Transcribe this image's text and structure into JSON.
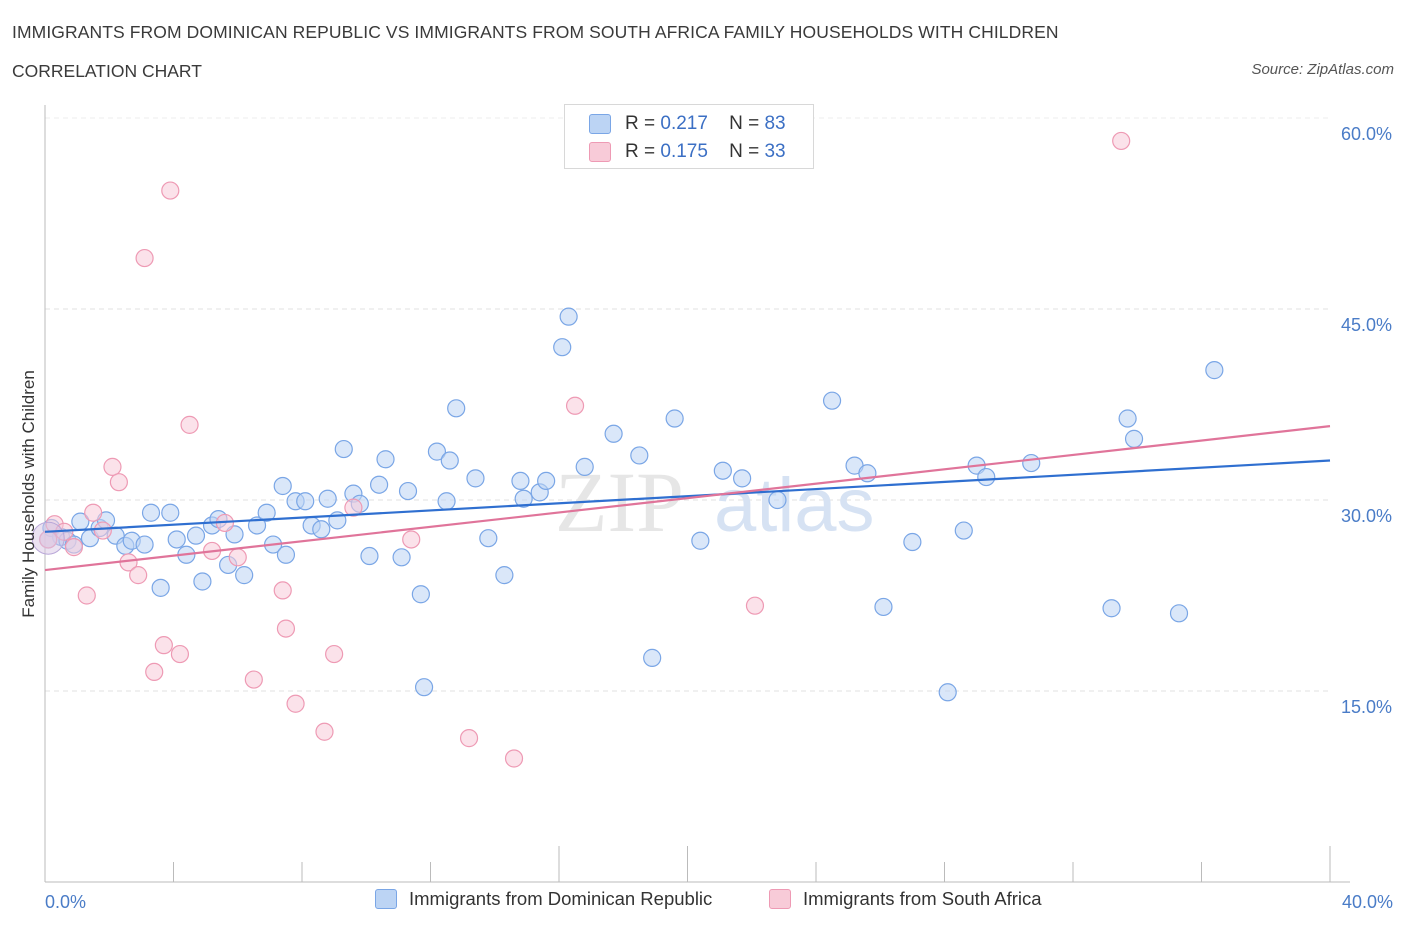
{
  "title": "IMMIGRANTS FROM DOMINICAN REPUBLIC VS IMMIGRANTS FROM SOUTH AFRICA FAMILY HOUSEHOLDS WITH CHILDREN",
  "subtitle": "CORRELATION CHART",
  "source": "Source: ZipAtlas.com",
  "watermark": {
    "zip": "ZIP",
    "atlas": "atlas"
  },
  "legend_top": [
    {
      "r_label": "R =",
      "r_value": "0.217",
      "n_label": "N =",
      "n_value": "83",
      "color": "#a9c8f0"
    },
    {
      "r_label": "R =",
      "r_value": "0.175",
      "n_label": "N =",
      "n_value": "33",
      "color": "#f5b8cb"
    }
  ],
  "chart_data": {
    "type": "scatter",
    "title": "IMMIGRANTS FROM DOMINICAN REPUBLIC VS IMMIGRANTS FROM SOUTH AFRICA FAMILY HOUSEHOLDS WITH CHILDREN",
    "ylabel": "Family Households with Children",
    "xlabel": "",
    "xlim": [
      0,
      40
    ],
    "ylim": [
      0,
      60
    ],
    "y_ticks": [
      {
        "value": 15,
        "label": "15.0%"
      },
      {
        "value": 30,
        "label": "30.0%"
      },
      {
        "value": 45,
        "label": "45.0%"
      },
      {
        "value": 60,
        "label": "60.0%"
      }
    ],
    "x_tick_labels": {
      "left": "0.0%",
      "right": "40.0%"
    },
    "x_minor_ticks": [
      0,
      4,
      8,
      12,
      16,
      20,
      24,
      28,
      32,
      36,
      40
    ],
    "series": [
      {
        "name": "Immigrants from Dominican Republic",
        "color": "#7aa6e6",
        "fill": "#bcd4f4",
        "line_color": "#2f6fd0",
        "trend": {
          "x0": 0,
          "y0": 27.5,
          "x1": 40,
          "y1": 33.1
        },
        "points": [
          [
            0.2,
            27.8
          ],
          [
            0.5,
            27.1
          ],
          [
            0.7,
            26.8
          ],
          [
            0.9,
            26.5
          ],
          [
            1.1,
            28.3
          ],
          [
            1.4,
            27.0
          ],
          [
            1.7,
            27.8
          ],
          [
            1.9,
            28.4
          ],
          [
            2.2,
            27.2
          ],
          [
            2.5,
            26.4
          ],
          [
            2.7,
            26.8
          ],
          [
            3.1,
            26.5
          ],
          [
            3.3,
            29.0
          ],
          [
            3.6,
            23.1
          ],
          [
            3.9,
            29.0
          ],
          [
            4.1,
            26.9
          ],
          [
            4.4,
            25.7
          ],
          [
            4.7,
            27.2
          ],
          [
            4.9,
            23.6
          ],
          [
            5.2,
            28.0
          ],
          [
            5.4,
            28.5
          ],
          [
            5.7,
            24.9
          ],
          [
            5.9,
            27.3
          ],
          [
            6.2,
            24.1
          ],
          [
            6.6,
            28.0
          ],
          [
            6.9,
            29.0
          ],
          [
            7.1,
            26.5
          ],
          [
            7.4,
            31.1
          ],
          [
            7.5,
            25.7
          ],
          [
            7.8,
            29.9
          ],
          [
            8.1,
            29.9
          ],
          [
            8.3,
            28.0
          ],
          [
            8.6,
            27.7
          ],
          [
            8.8,
            30.1
          ],
          [
            9.1,
            28.4
          ],
          [
            9.3,
            34.0
          ],
          [
            9.6,
            30.5
          ],
          [
            9.8,
            29.7
          ],
          [
            10.1,
            25.6
          ],
          [
            10.4,
            31.2
          ],
          [
            10.6,
            33.2
          ],
          [
            11.1,
            25.5
          ],
          [
            11.3,
            30.7
          ],
          [
            11.7,
            22.6
          ],
          [
            11.8,
            15.3
          ],
          [
            12.2,
            33.8
          ],
          [
            12.5,
            29.9
          ],
          [
            12.6,
            33.1
          ],
          [
            12.8,
            37.2
          ],
          [
            13.4,
            31.7
          ],
          [
            13.8,
            27.0
          ],
          [
            14.3,
            24.1
          ],
          [
            14.8,
            31.5
          ],
          [
            14.9,
            30.1
          ],
          [
            15.4,
            30.6
          ],
          [
            15.6,
            31.5
          ],
          [
            16.1,
            42.0
          ],
          [
            16.3,
            44.4
          ],
          [
            16.8,
            32.6
          ],
          [
            17.7,
            35.2
          ],
          [
            18.5,
            33.5
          ],
          [
            18.9,
            17.6
          ],
          [
            19.6,
            36.4
          ],
          [
            20.4,
            26.8
          ],
          [
            21.1,
            32.3
          ],
          [
            21.7,
            31.7
          ],
          [
            22.8,
            30.0
          ],
          [
            24.5,
            37.8
          ],
          [
            25.2,
            32.7
          ],
          [
            25.6,
            32.1
          ],
          [
            26.1,
            21.6
          ],
          [
            27.0,
            26.7
          ],
          [
            28.1,
            14.9
          ],
          [
            28.6,
            27.6
          ],
          [
            29.0,
            32.7
          ],
          [
            29.3,
            31.8
          ],
          [
            30.7,
            32.9
          ],
          [
            33.2,
            21.5
          ],
          [
            33.7,
            36.4
          ],
          [
            33.9,
            34.8
          ],
          [
            35.3,
            21.1
          ],
          [
            36.4,
            40.2
          ],
          [
            0.1,
            26.9
          ]
        ]
      },
      {
        "name": "Immigrants from South Africa",
        "color": "#ee9ab4",
        "fill": "#f8cbd8",
        "line_color": "#e0749a",
        "trend": {
          "x0": 0,
          "y0": 24.5,
          "x1": 40,
          "y1": 35.8
        },
        "points": [
          [
            0.1,
            26.9
          ],
          [
            0.3,
            28.1
          ],
          [
            0.6,
            27.5
          ],
          [
            0.9,
            26.3
          ],
          [
            1.3,
            22.5
          ],
          [
            1.5,
            29.0
          ],
          [
            1.8,
            27.6
          ],
          [
            2.1,
            32.6
          ],
          [
            2.3,
            31.4
          ],
          [
            2.6,
            25.1
          ],
          [
            2.9,
            24.1
          ],
          [
            3.1,
            49.0
          ],
          [
            3.4,
            16.5
          ],
          [
            3.7,
            18.6
          ],
          [
            3.9,
            54.3
          ],
          [
            4.2,
            17.9
          ],
          [
            4.5,
            35.9
          ],
          [
            5.2,
            26.0
          ],
          [
            5.6,
            28.2
          ],
          [
            6.0,
            25.5
          ],
          [
            6.5,
            15.9
          ],
          [
            7.4,
            22.9
          ],
          [
            7.5,
            19.9
          ],
          [
            7.8,
            14.0
          ],
          [
            8.7,
            11.8
          ],
          [
            9.0,
            17.9
          ],
          [
            9.6,
            29.4
          ],
          [
            11.4,
            26.9
          ],
          [
            13.2,
            11.3
          ],
          [
            14.6,
            9.7
          ],
          [
            16.5,
            37.4
          ],
          [
            22.1,
            21.7
          ],
          [
            33.5,
            58.2
          ]
        ]
      }
    ]
  }
}
